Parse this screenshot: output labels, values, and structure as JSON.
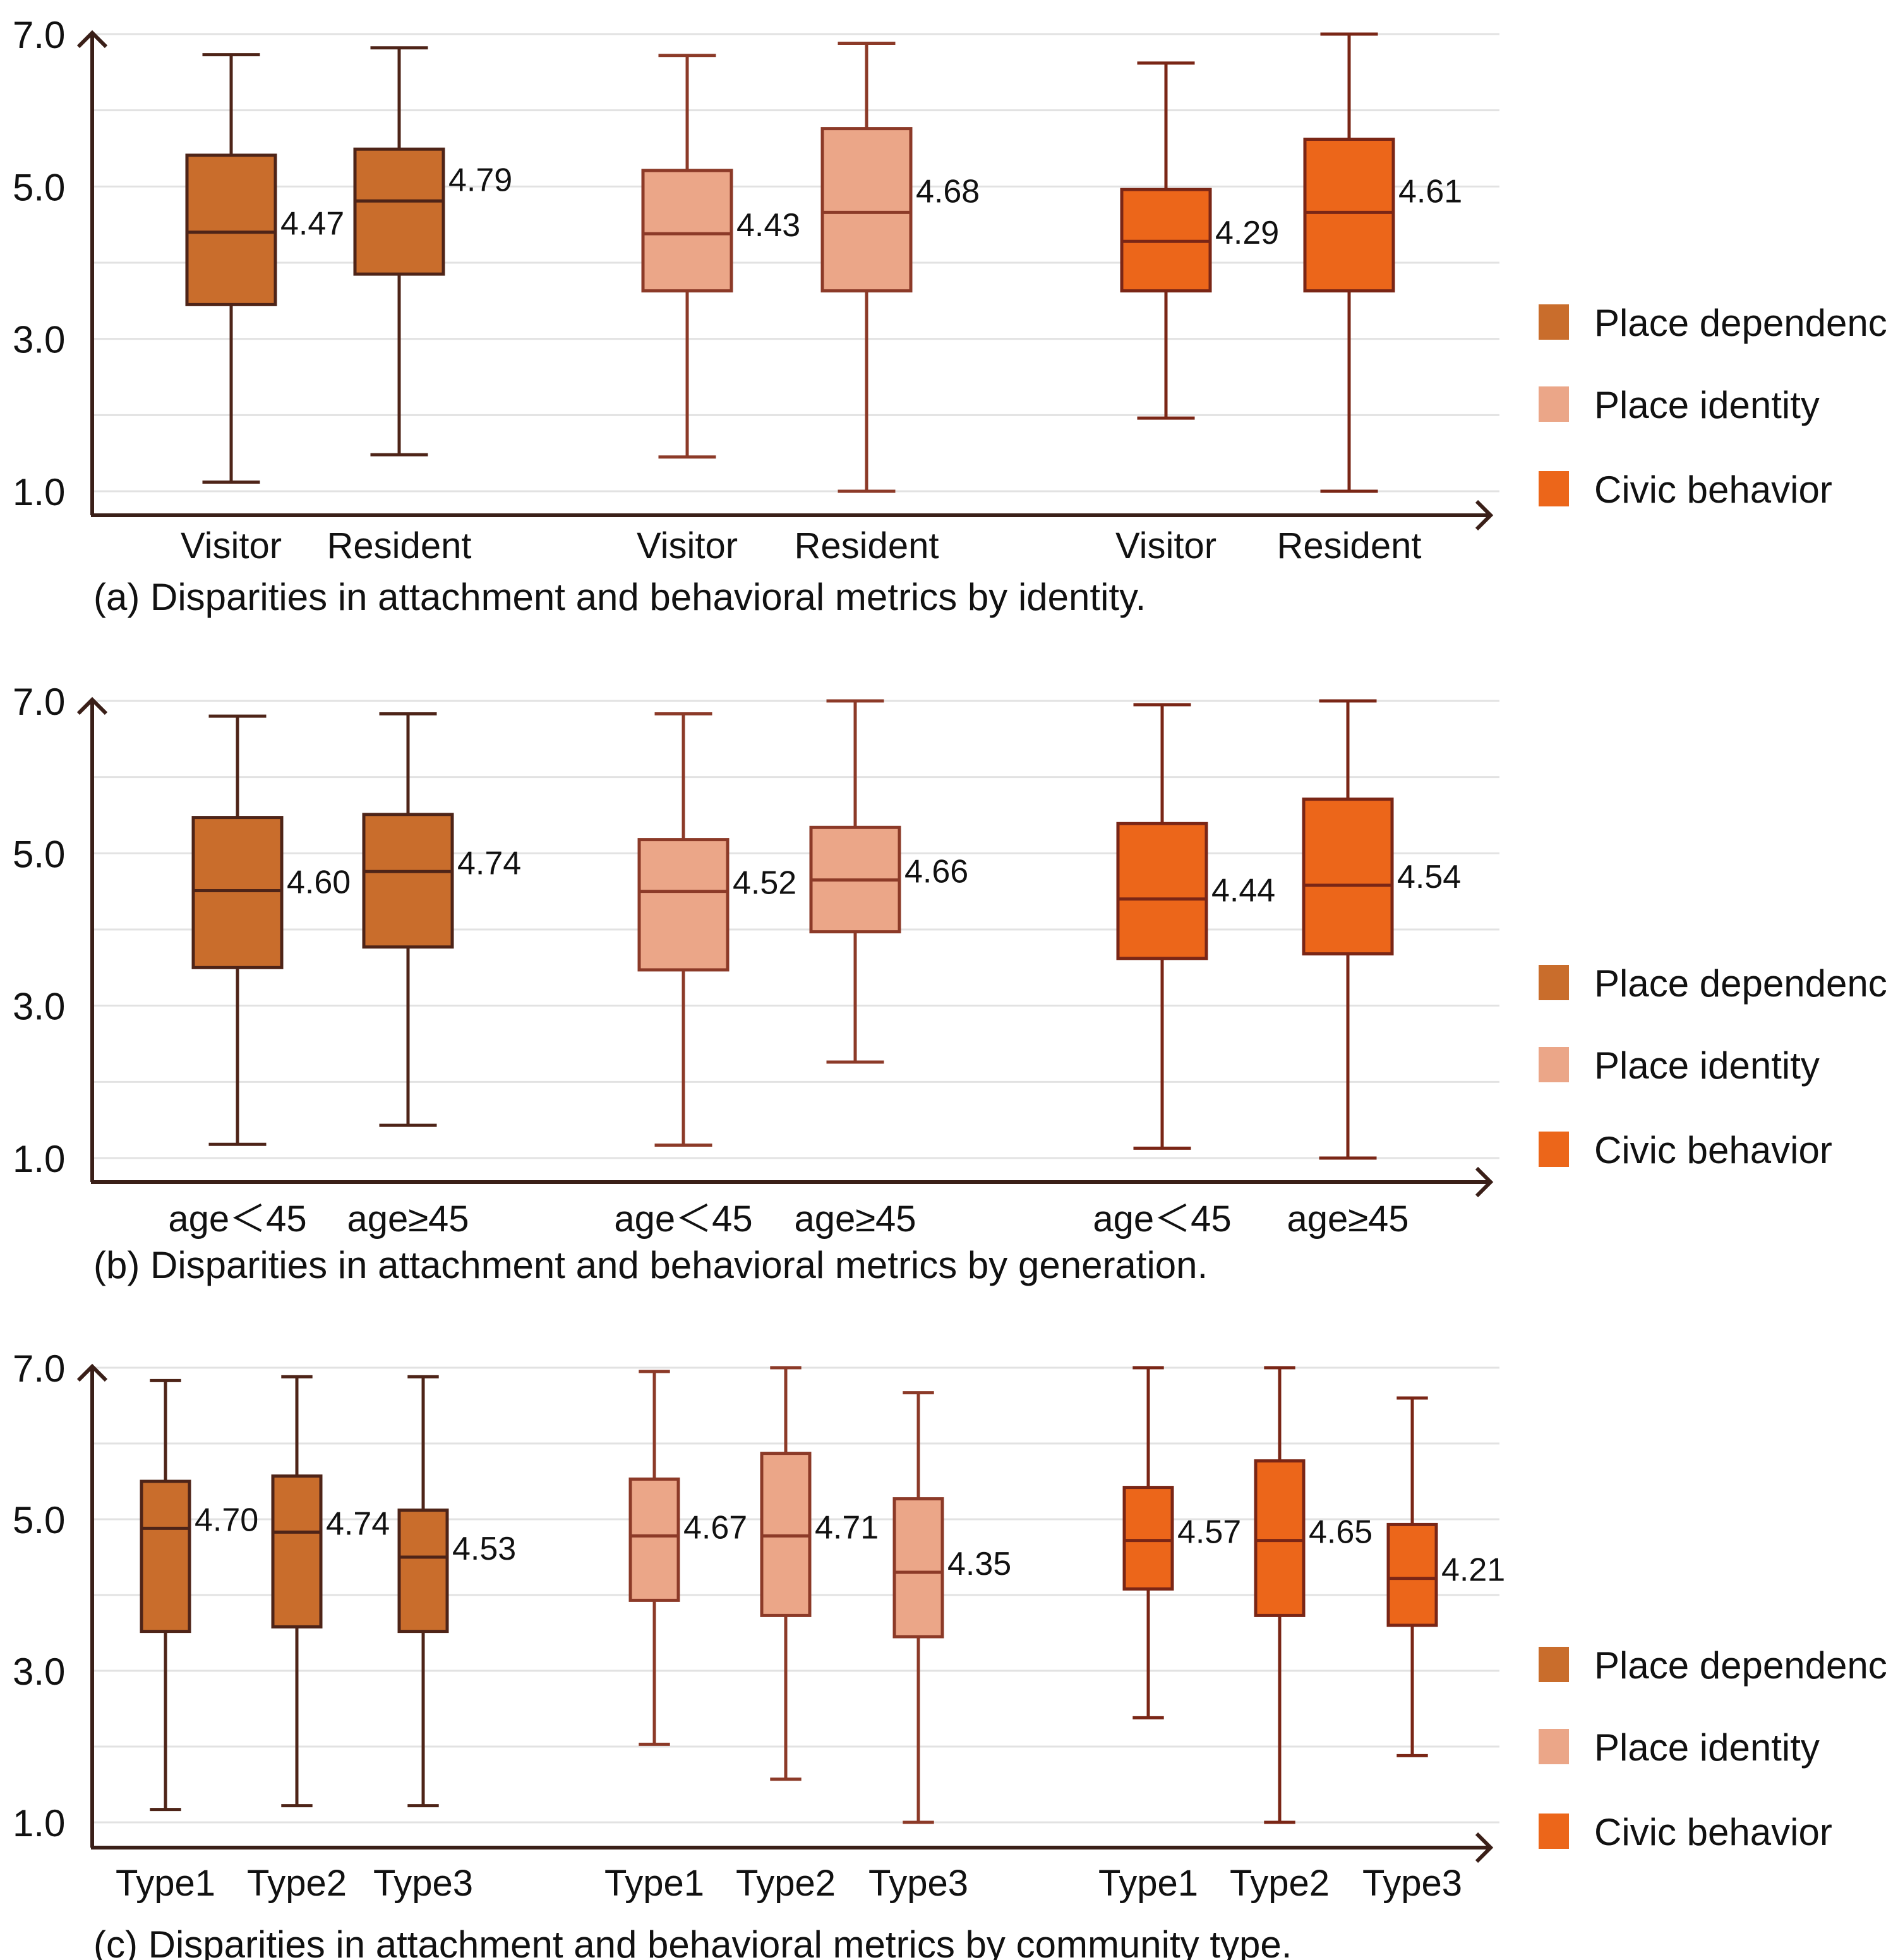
{
  "colors": {
    "Place dependence": {
      "fill": "#C96D2C",
      "stroke": "#4E2418"
    },
    "Place identity": {
      "fill": "#EBA688",
      "stroke": "#8C3A28"
    },
    "Civic behavior": {
      "fill": "#EC661A",
      "stroke": "#7A2616"
    },
    "axis": "#3a1f18",
    "grid": "#e2e2e2"
  },
  "chart_data": [
    {
      "type": "box",
      "title": "(a) Disparities in attachment and behavioral metrics by identity.",
      "ylim": [
        1.0,
        7.0
      ],
      "yticks": [
        "7.0",
        "5.0",
        "3.0",
        "1.0"
      ],
      "grid": true,
      "legend": [
        "Place dependence",
        "Place identity",
        "Civic behavior"
      ],
      "legend_position": "right",
      "boxes": [
        {
          "series": "Place dependence",
          "category": "Visitor",
          "min": 1.12,
          "q1": 3.45,
          "median": 4.4,
          "q3": 5.41,
          "max": 6.73,
          "label": "4.47"
        },
        {
          "series": "Place dependence",
          "category": "Resident",
          "min": 1.48,
          "q1": 3.85,
          "median": 4.81,
          "q3": 5.49,
          "max": 6.82,
          "label": "4.79"
        },
        {
          "series": "Place identity",
          "category": "Visitor",
          "min": 1.45,
          "q1": 3.63,
          "median": 4.38,
          "q3": 5.21,
          "max": 6.72,
          "label": "4.43"
        },
        {
          "series": "Place identity",
          "category": "Resident",
          "min": 1.0,
          "q1": 3.63,
          "median": 4.66,
          "q3": 5.76,
          "max": 6.88,
          "label": "4.68"
        },
        {
          "series": "Civic behavior",
          "category": "Visitor",
          "min": 1.96,
          "q1": 3.63,
          "median": 4.28,
          "q3": 4.96,
          "max": 6.62,
          "label": "4.29"
        },
        {
          "series": "Civic behavior",
          "category": "Resident",
          "min": 1.0,
          "q1": 3.63,
          "median": 4.66,
          "q3": 5.62,
          "max": 7.0,
          "label": "4.61"
        }
      ]
    },
    {
      "type": "box",
      "title": "(b) Disparities in attachment and behavioral metrics by generation.",
      "ylim": [
        1.0,
        7.0
      ],
      "yticks": [
        "7.0",
        "5.0",
        "3.0",
        "1.0"
      ],
      "grid": true,
      "legend": [
        "Place dependence",
        "Place identity",
        "Civic behavior"
      ],
      "legend_position": "right",
      "boxes": [
        {
          "series": "Place dependence",
          "category": "age＜45",
          "min": 1.18,
          "q1": 3.5,
          "median": 4.51,
          "q3": 5.47,
          "max": 6.8,
          "label": "4.60"
        },
        {
          "series": "Place dependence",
          "category": "age≥45",
          "min": 1.43,
          "q1": 3.77,
          "median": 4.76,
          "q3": 5.51,
          "max": 6.83,
          "label": "4.74"
        },
        {
          "series": "Place identity",
          "category": "age＜45",
          "min": 1.17,
          "q1": 3.47,
          "median": 4.5,
          "q3": 5.18,
          "max": 6.83,
          "label": "4.52"
        },
        {
          "series": "Place identity",
          "category": "age≥45",
          "min": 2.26,
          "q1": 3.97,
          "median": 4.65,
          "q3": 5.34,
          "max": 7.0,
          "label": "4.66"
        },
        {
          "series": "Civic behavior",
          "category": "age＜45",
          "min": 1.13,
          "q1": 3.62,
          "median": 4.4,
          "q3": 5.39,
          "max": 6.95,
          "label": "4.44"
        },
        {
          "series": "Civic behavior",
          "category": "age≥45",
          "min": 1.0,
          "q1": 3.68,
          "median": 4.58,
          "q3": 5.71,
          "max": 7.0,
          "label": "4.54"
        }
      ]
    },
    {
      "type": "box",
      "title": "(c) Disparities in attachment and behavioral metrics by community type.",
      "ylim": [
        1.0,
        7.0
      ],
      "yticks": [
        "7.0",
        "5.0",
        "3.0",
        "1.0"
      ],
      "grid": true,
      "legend": [
        "Place dependence",
        "Place identity",
        "Civic behavior"
      ],
      "legend_position": "right",
      "boxes": [
        {
          "series": "Place dependence",
          "category": "Type1",
          "min": 1.17,
          "q1": 3.52,
          "median": 4.88,
          "q3": 5.5,
          "max": 6.83,
          "label": "4.70"
        },
        {
          "series": "Place dependence",
          "category": "Type2",
          "min": 1.22,
          "q1": 3.58,
          "median": 4.83,
          "q3": 5.57,
          "max": 6.88,
          "label": "4.74"
        },
        {
          "series": "Place dependence",
          "category": "Type3",
          "min": 1.22,
          "q1": 3.52,
          "median": 4.5,
          "q3": 5.12,
          "max": 6.88,
          "label": "4.53"
        },
        {
          "series": "Place identity",
          "category": "Type1",
          "min": 2.03,
          "q1": 3.93,
          "median": 4.78,
          "q3": 5.53,
          "max": 6.95,
          "label": "4.67"
        },
        {
          "series": "Place identity",
          "category": "Type2",
          "min": 1.57,
          "q1": 3.73,
          "median": 4.78,
          "q3": 5.87,
          "max": 7.0,
          "label": "4.71"
        },
        {
          "series": "Place identity",
          "category": "Type3",
          "min": 1.0,
          "q1": 3.45,
          "median": 4.3,
          "q3": 5.27,
          "max": 6.67,
          "label": "4.35"
        },
        {
          "series": "Civic behavior",
          "category": "Type1",
          "min": 2.38,
          "q1": 4.08,
          "median": 4.72,
          "q3": 5.42,
          "max": 7.0,
          "label": "4.57"
        },
        {
          "series": "Civic behavior",
          "category": "Type2",
          "min": 1.0,
          "q1": 3.73,
          "median": 4.72,
          "q3": 5.77,
          "max": 7.0,
          "label": "4.65"
        },
        {
          "series": "Civic behavior",
          "category": "Type3",
          "min": 1.88,
          "q1": 3.6,
          "median": 4.22,
          "q3": 4.93,
          "max": 6.6,
          "label": "4.21"
        }
      ]
    }
  ]
}
